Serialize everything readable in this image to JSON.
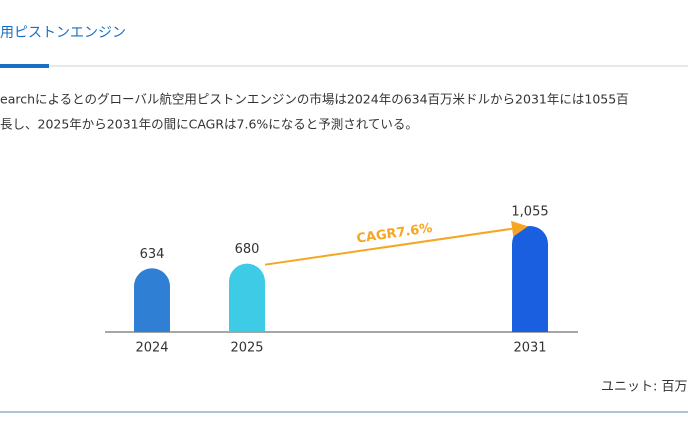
{
  "header": {
    "title": "用ピストンエンジン"
  },
  "paragraph": [
    "earchによるとのグローバル航空用ピストンエンジンの市場は2024年の634百万米ドルから2031年には1055百",
    "長し、2025年から2031年の間にCAGRは7.6%になると予測されている。"
  ],
  "chart_data": {
    "type": "bar",
    "categories": [
      "2024",
      "2025",
      "2031"
    ],
    "values": [
      634,
      680,
      1055
    ],
    "value_labels": [
      "634",
      "680",
      "1,055"
    ],
    "colors": [
      "#2f80d4",
      "#3ecbe6",
      "#1a5fe0"
    ],
    "annotation": "CAGR7.6%",
    "unit": "ユニット: 百万"
  }
}
